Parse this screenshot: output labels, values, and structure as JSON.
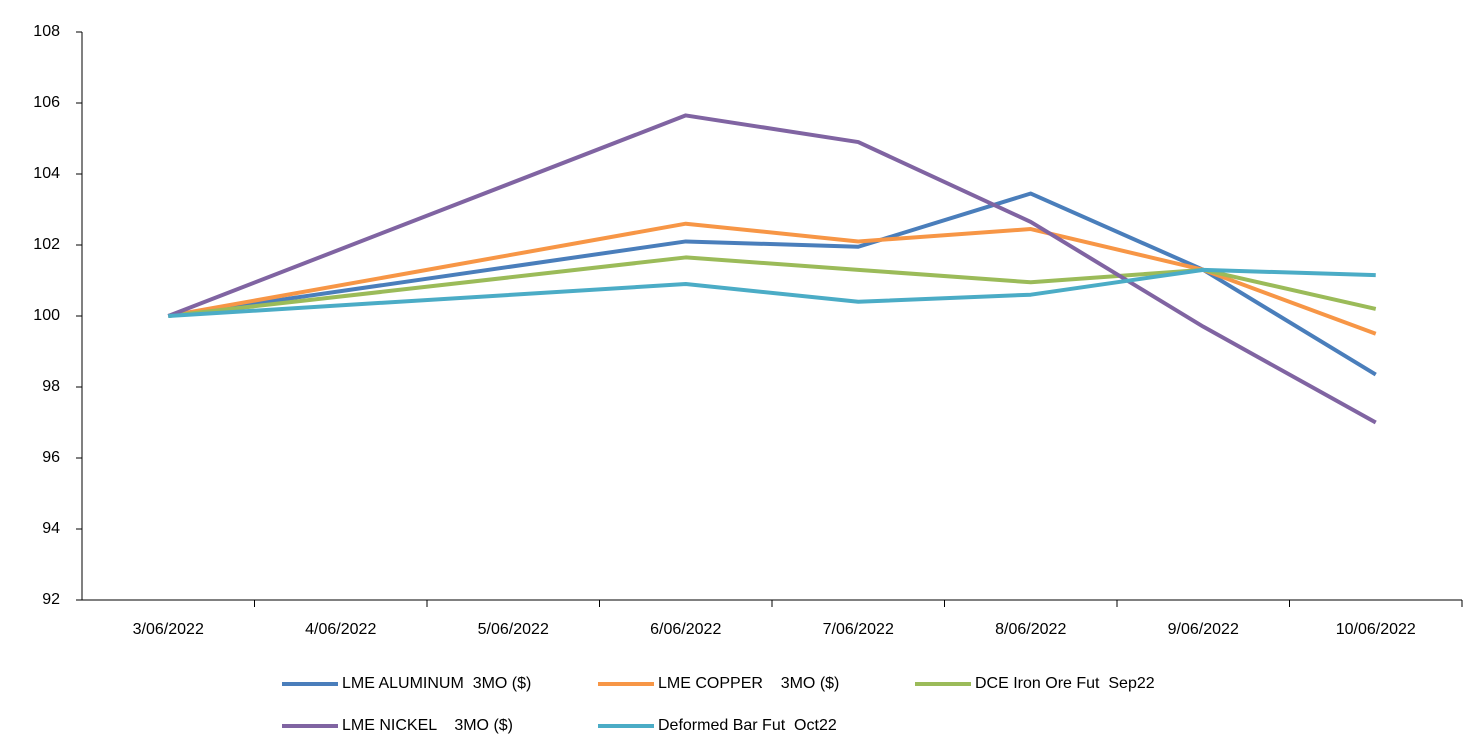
{
  "chart_data": {
    "type": "line",
    "categories": [
      "3/06/2022",
      "4/06/2022",
      "5/06/2022",
      "6/06/2022",
      "7/06/2022",
      "8/06/2022",
      "9/06/2022",
      "10/06/2022"
    ],
    "x": [
      "3/06/2022",
      "6/06/2022",
      "7/06/2022",
      "8/06/2022",
      "9/06/2022",
      "10/06/2022"
    ],
    "series": [
      {
        "name": "LME ALUMINUM  3MO ($)",
        "color": "#4a7ebb",
        "values": [
          100,
          102.1,
          101.95,
          103.45,
          101.3,
          98.35
        ]
      },
      {
        "name": "LME COPPER    3MO ($)",
        "color": "#f79646",
        "values": [
          100,
          102.6,
          102.1,
          102.45,
          101.3,
          99.5
        ]
      },
      {
        "name": "DCE Iron Ore Fut  Sep22",
        "color": "#9bbb59",
        "values": [
          100,
          101.65,
          101.3,
          100.95,
          101.3,
          100.2
        ]
      },
      {
        "name": "LME NICKEL    3MO ($)",
        "color": "#8064a2",
        "values": [
          100,
          105.65,
          104.9,
          102.65,
          99.7,
          97.0
        ]
      },
      {
        "name": "Deformed Bar Fut  Oct22",
        "color": "#4bacc6",
        "values": [
          100,
          100.9,
          100.4,
          100.6,
          101.3,
          101.15
        ]
      }
    ],
    "ylim": [
      92,
      108
    ],
    "yticks": [
      92,
      94,
      96,
      98,
      100,
      102,
      104,
      106,
      108
    ],
    "legend": "bottom"
  }
}
